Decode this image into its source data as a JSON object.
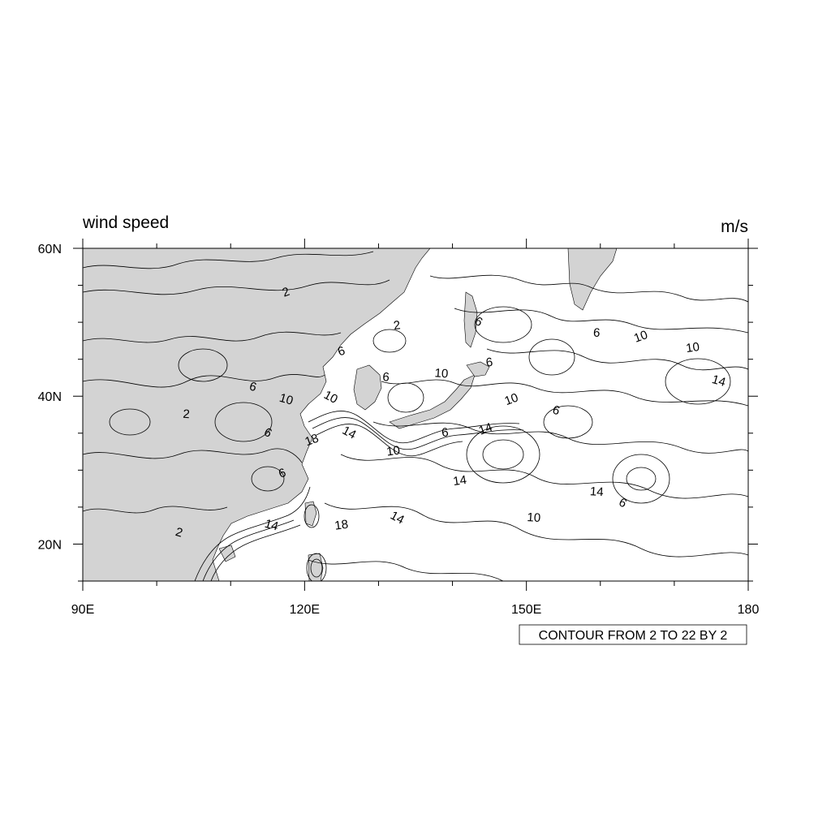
{
  "title": {
    "left": "wind speed",
    "right": "m/s"
  },
  "map": {
    "lon_range": [
      90,
      180
    ],
    "lat_range": [
      15,
      60
    ],
    "land_color": "#d3d3d3",
    "ocean_color": "#ffffff",
    "contour_color": "#000000",
    "lon_ticks": [
      {
        "value": 90,
        "label": "90E"
      },
      {
        "value": 120,
        "label": "120E"
      },
      {
        "value": 150,
        "label": "150E"
      },
      {
        "value": 180,
        "label": "180"
      }
    ],
    "lat_ticks": [
      {
        "value": 20,
        "label": "20N"
      },
      {
        "value": 40,
        "label": "40N"
      },
      {
        "value": 60,
        "label": "60N"
      }
    ],
    "contour_min": 2,
    "contour_max": 22,
    "contour_interval": 2
  },
  "contour_labels": [
    {
      "text": "2",
      "lon": 117.5,
      "lat": 54.0
    },
    {
      "text": "2",
      "lon": 132.5,
      "lat": 49.5
    },
    {
      "text": "2",
      "lon": 104.0,
      "lat": 37.5
    },
    {
      "text": "2",
      "lon": 103.0,
      "lat": 21.5
    },
    {
      "text": "6",
      "lon": 143.5,
      "lat": 50.0
    },
    {
      "text": "6",
      "lon": 125.0,
      "lat": 46.0
    },
    {
      "text": "6",
      "lon": 145.0,
      "lat": 44.5
    },
    {
      "text": "6",
      "lon": 131.0,
      "lat": 42.5
    },
    {
      "text": "6",
      "lon": 113.0,
      "lat": 41.2
    },
    {
      "text": "6",
      "lon": 115.0,
      "lat": 35.0
    },
    {
      "text": "6",
      "lon": 117.0,
      "lat": 29.5
    },
    {
      "text": "6",
      "lon": 139.0,
      "lat": 35.0
    },
    {
      "text": "6",
      "lon": 159.5,
      "lat": 48.5
    },
    {
      "text": "6",
      "lon": 154.0,
      "lat": 38.0
    },
    {
      "text": "6",
      "lon": 163.0,
      "lat": 25.5
    },
    {
      "text": "10",
      "lon": 165.5,
      "lat": 48.0
    },
    {
      "text": "10",
      "lon": 172.5,
      "lat": 46.5
    },
    {
      "text": "10",
      "lon": 138.5,
      "lat": 43.0
    },
    {
      "text": "10",
      "lon": 117.5,
      "lat": 39.5
    },
    {
      "text": "10",
      "lon": 123.5,
      "lat": 39.8
    },
    {
      "text": "10",
      "lon": 148.0,
      "lat": 39.5
    },
    {
      "text": "10",
      "lon": 132.0,
      "lat": 32.5
    },
    {
      "text": "10",
      "lon": 151.0,
      "lat": 23.5
    },
    {
      "text": "14",
      "lon": 176.0,
      "lat": 42.0
    },
    {
      "text": "14",
      "lon": 126.0,
      "lat": 35.0
    },
    {
      "text": "14",
      "lon": 144.5,
      "lat": 35.5
    },
    {
      "text": "14",
      "lon": 141.0,
      "lat": 28.5
    },
    {
      "text": "14",
      "lon": 159.5,
      "lat": 27.0
    },
    {
      "text": "14",
      "lon": 115.5,
      "lat": 22.5
    },
    {
      "text": "14",
      "lon": 132.5,
      "lat": 23.5
    },
    {
      "text": "18",
      "lon": 121.0,
      "lat": 34.0
    },
    {
      "text": "18",
      "lon": 125.0,
      "lat": 22.5
    }
  ],
  "info_label": "CONTOUR FROM 2 TO 22 BY 2"
}
